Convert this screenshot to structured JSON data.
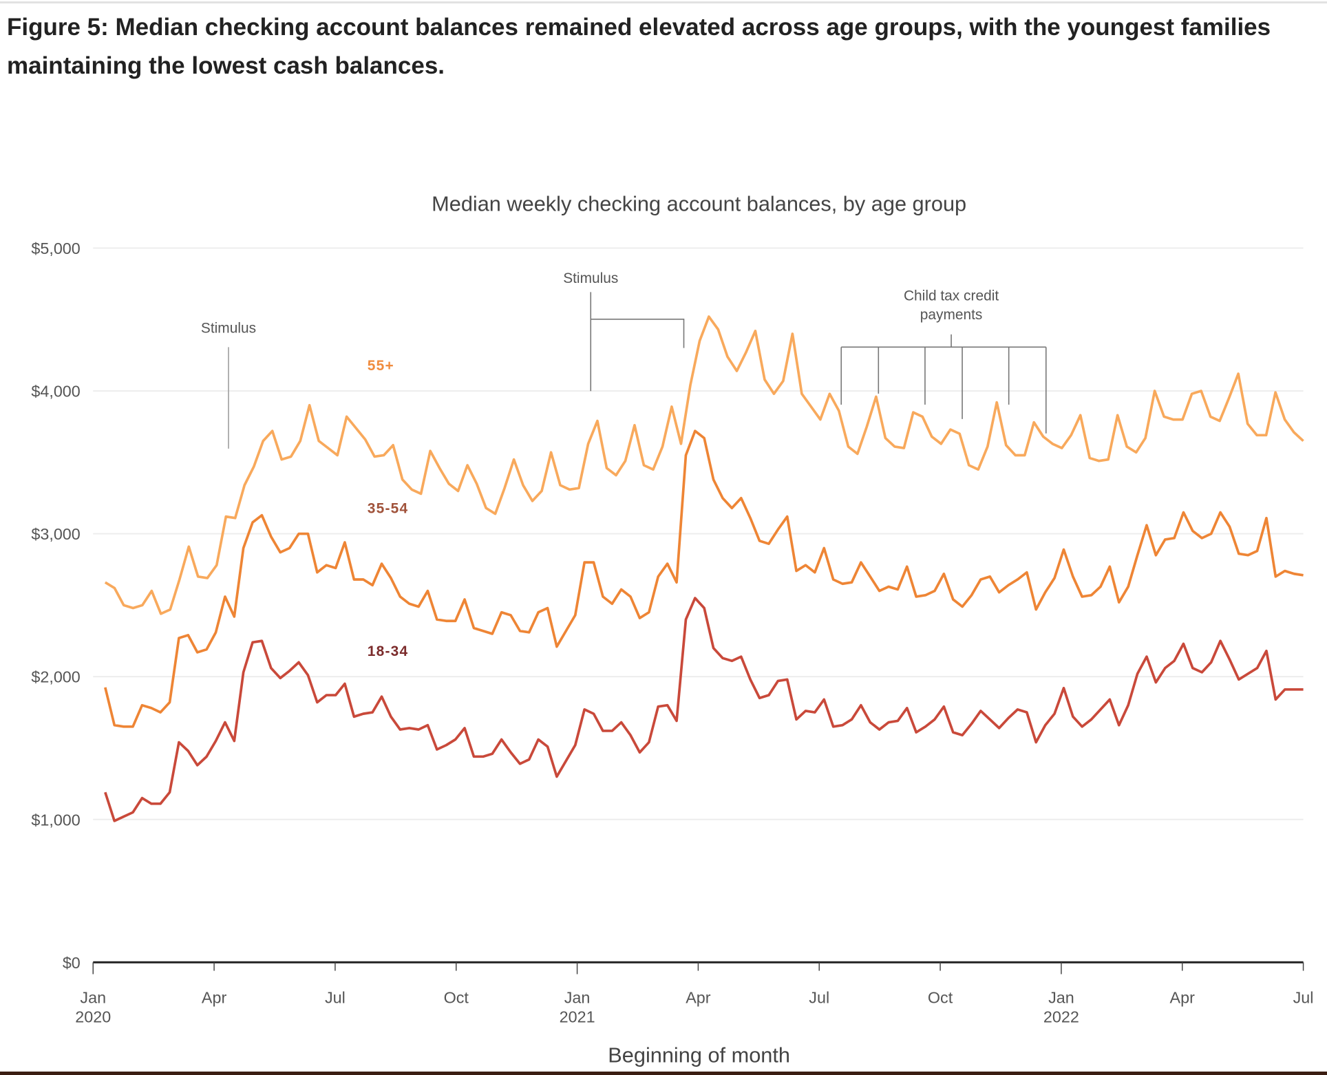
{
  "figure": {
    "title": "Figure 5: Median checking account balances remained elevated across age groups, with the youngest families maintaining the lowest cash balances."
  },
  "chart_data": {
    "type": "line",
    "title": "Median weekly checking account balances, by age group",
    "xlabel": "Beginning of month",
    "ylabel": "",
    "ylim": [
      0,
      5000
    ],
    "xrange": [
      "2020-01",
      "2022-07"
    ],
    "grid": true,
    "y_ticks": [
      {
        "value": 0,
        "label": "$0"
      },
      {
        "value": 1000,
        "label": "$1,000"
      },
      {
        "value": 2000,
        "label": "$2,000"
      },
      {
        "value": 3000,
        "label": "$3,000"
      },
      {
        "value": 4000,
        "label": "$4,000"
      },
      {
        "value": 5000,
        "label": "$5,000"
      }
    ],
    "x_ticks": [
      {
        "month": 0,
        "label": "Jan",
        "year": "2020"
      },
      {
        "month": 3,
        "label": "Apr",
        "year": ""
      },
      {
        "month": 6,
        "label": "Jul",
        "year": ""
      },
      {
        "month": 9,
        "label": "Oct",
        "year": ""
      },
      {
        "month": 12,
        "label": "Jan",
        "year": "2021"
      },
      {
        "month": 15,
        "label": "Apr",
        "year": ""
      },
      {
        "month": 18,
        "label": "Jul",
        "year": ""
      },
      {
        "month": 21,
        "label": "Oct",
        "year": ""
      },
      {
        "month": 24,
        "label": "Jan",
        "year": "2022"
      },
      {
        "month": 27,
        "label": "Apr",
        "year": ""
      },
      {
        "month": 30,
        "label": "Jul",
        "year": ""
      }
    ],
    "x_start_month": 0.3,
    "x_end_month": 30,
    "series": [
      {
        "name": "55+",
        "color": "#f8a95c",
        "label_color": "#f08c3e",
        "label_value": 4180,
        "label_month": 6.8,
        "values": [
          2660,
          2620,
          2500,
          2480,
          2500,
          2600,
          2440,
          2470,
          2680,
          2910,
          2700,
          2690,
          2780,
          3120,
          3110,
          3340,
          3470,
          3650,
          3720,
          3520,
          3540,
          3650,
          3900,
          3650,
          3600,
          3550,
          3820,
          3740,
          3660,
          3540,
          3550,
          3620,
          3380,
          3310,
          3280,
          3580,
          3460,
          3350,
          3300,
          3480,
          3350,
          3180,
          3140,
          3320,
          3520,
          3340,
          3230,
          3300,
          3570,
          3340,
          3310,
          3320,
          3630,
          3790,
          3460,
          3410,
          3510,
          3760,
          3480,
          3450,
          3610,
          3890,
          3630,
          4040,
          4350,
          4520,
          4430,
          4240,
          4140,
          4270,
          4420,
          4080,
          3980,
          4070,
          4400,
          3980,
          3890,
          3800,
          3980,
          3860,
          3610,
          3560,
          3750,
          3960,
          3670,
          3610,
          3600,
          3850,
          3820,
          3680,
          3630,
          3730,
          3700,
          3480,
          3450,
          3610,
          3920,
          3620,
          3550,
          3550,
          3780,
          3680,
          3630,
          3600,
          3690,
          3830,
          3530,
          3510,
          3520,
          3830,
          3610,
          3570,
          3670,
          4000,
          3820,
          3800,
          3800,
          3980,
          4000,
          3820,
          3790,
          3950,
          4120,
          3770,
          3690,
          3690,
          3990,
          3800,
          3710,
          3650
        ]
      },
      {
        "name": "35-54",
        "color": "#ee8535",
        "label_color": "#a0523a",
        "label_value": 3180,
        "label_month": 6.8,
        "values": [
          1925,
          1660,
          1650,
          1650,
          1800,
          1780,
          1750,
          1820,
          2270,
          2290,
          2170,
          2190,
          2310,
          2560,
          2420,
          2900,
          3080,
          3130,
          2980,
          2870,
          2900,
          3000,
          3000,
          2730,
          2780,
          2760,
          2940,
          2680,
          2680,
          2640,
          2790,
          2690,
          2560,
          2510,
          2490,
          2600,
          2400,
          2390,
          2390,
          2540,
          2340,
          2320,
          2300,
          2450,
          2430,
          2320,
          2310,
          2450,
          2480,
          2210,
          2320,
          2430,
          2800,
          2800,
          2560,
          2510,
          2610,
          2560,
          2410,
          2450,
          2700,
          2790,
          2660,
          3550,
          3720,
          3670,
          3380,
          3250,
          3180,
          3250,
          3110,
          2950,
          2930,
          3030,
          3120,
          2740,
          2780,
          2730,
          2900,
          2680,
          2650,
          2660,
          2800,
          2700,
          2600,
          2630,
          2610,
          2770,
          2560,
          2570,
          2600,
          2720,
          2540,
          2490,
          2570,
          2680,
          2700,
          2590,
          2640,
          2680,
          2730,
          2470,
          2590,
          2690,
          2890,
          2700,
          2560,
          2570,
          2630,
          2770,
          2520,
          2630,
          2850,
          3060,
          2850,
          2960,
          2970,
          3150,
          3020,
          2970,
          3000,
          3150,
          3050,
          2860,
          2850,
          2880,
          3110,
          2700,
          2740,
          2720,
          2710
        ]
      },
      {
        "name": "18-34",
        "color": "#c9493a",
        "label_color": "#7b2b2b",
        "label_value": 2180,
        "label_month": 6.8,
        "values": [
          1190,
          990,
          1020,
          1050,
          1150,
          1110,
          1110,
          1190,
          1540,
          1480,
          1380,
          1440,
          1550,
          1680,
          1550,
          2030,
          2240,
          2250,
          2060,
          1990,
          2040,
          2100,
          2010,
          1820,
          1870,
          1870,
          1950,
          1720,
          1740,
          1750,
          1860,
          1720,
          1630,
          1640,
          1630,
          1660,
          1490,
          1520,
          1560,
          1640,
          1440,
          1440,
          1460,
          1560,
          1470,
          1390,
          1420,
          1560,
          1510,
          1300,
          1410,
          1520,
          1770,
          1740,
          1620,
          1620,
          1680,
          1590,
          1470,
          1540,
          1790,
          1800,
          1690,
          2400,
          2550,
          2480,
          2200,
          2130,
          2110,
          2140,
          1980,
          1850,
          1870,
          1970,
          1980,
          1700,
          1760,
          1750,
          1840,
          1650,
          1660,
          1700,
          1800,
          1680,
          1630,
          1680,
          1690,
          1780,
          1610,
          1650,
          1700,
          1790,
          1610,
          1590,
          1670,
          1760,
          1700,
          1640,
          1710,
          1770,
          1750,
          1540,
          1660,
          1740,
          1920,
          1720,
          1650,
          1700,
          1770,
          1840,
          1660,
          1800,
          2020,
          2140,
          1960,
          2060,
          2110,
          2230,
          2060,
          2030,
          2100,
          2250,
          2120,
          1980,
          2020,
          2060,
          2180,
          1840,
          1910,
          1910,
          1910
        ]
      }
    ],
    "annotations": [
      {
        "text": "Stimulus",
        "lines": []
      },
      {
        "text": "Stimulus",
        "lines": []
      },
      {
        "text": "Child tax credit",
        "text2": "payments",
        "lines": []
      }
    ]
  }
}
